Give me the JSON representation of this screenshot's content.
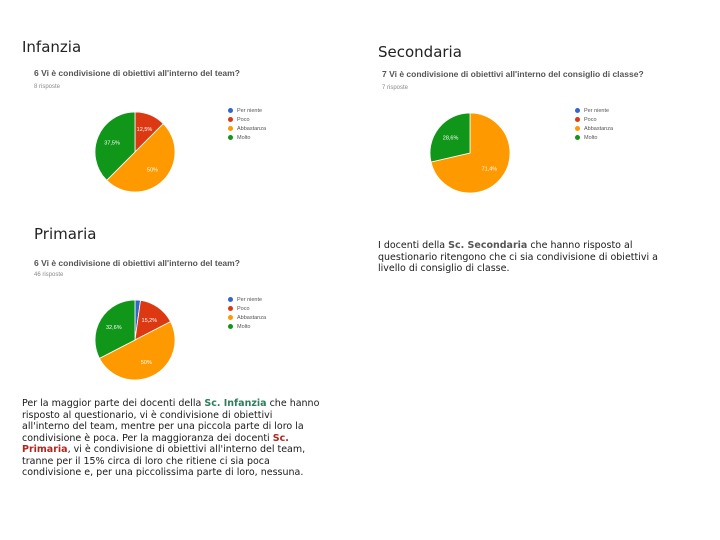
{
  "sections": {
    "infanzia": "Infanzia",
    "secondaria": "Secondaria",
    "primaria": "Primaria"
  },
  "colors": {
    "per_niente": "#3366cc",
    "poco": "#dc3912",
    "abbastanza": "#ff9900",
    "molto": "#109618"
  },
  "chart_data": [
    {
      "type": "pie",
      "id": "infanzia",
      "title": "6 Vi è condivisione di obiettivi all'interno del team?",
      "subtitle": "8 risposte",
      "labels": [
        "Per niente",
        "Poco",
        "Abbastanza",
        "Molto"
      ],
      "values": [
        0,
        12.5,
        50,
        37.5
      ],
      "data_labels": [
        "",
        "12,5%",
        "50%",
        "37,5%"
      ],
      "legend_position": "right"
    },
    {
      "type": "pie",
      "id": "secondaria",
      "title": "7 Vi è condivisione di obiettivi all'interno del consiglio di classe?",
      "subtitle": "7 risposte",
      "labels": [
        "Per niente",
        "Poco",
        "Abbastanza",
        "Molto"
      ],
      "values": [
        0,
        0,
        71.4,
        28.6
      ],
      "data_labels": [
        "",
        "",
        "71,4%",
        "28,6%"
      ],
      "legend_position": "right"
    },
    {
      "type": "pie",
      "id": "primaria",
      "title": "6 Vi è condivisione di obiettivi all'interno del team?",
      "subtitle": "46 risposte",
      "labels": [
        "Per niente",
        "Poco",
        "Abbastanza",
        "Molto"
      ],
      "values": [
        2.2,
        15.2,
        50,
        32.6
      ],
      "data_labels": [
        "",
        "15,2%",
        "50%",
        "32,6%"
      ],
      "legend_position": "right"
    }
  ],
  "text_secondaria": {
    "p1": "I docenti della ",
    "hl": "Sc. Secondaria",
    "p2": " che hanno risposto al questionario ritengono che ci sia condivisione di obiettivi a livello di consiglio di classe."
  },
  "text_primaria": {
    "p1": "Per la maggior parte dei docenti della ",
    "hl1": "Sc. Infanzia",
    "p2": " che hanno risposto al questionario, vi è condivisione di obiettivi all'interno del team, mentre per una piccola parte di loro la condivisione è poca. Per la maggioranza dei docenti ",
    "hl2": "Sc. Primaria",
    "p3": ", vi è condivisione di obiettivi all'interno del team, tranne per il 15% circa di loro che ritiene ci sia poca condivisione e, per una piccolissima parte di loro, nessuna."
  }
}
